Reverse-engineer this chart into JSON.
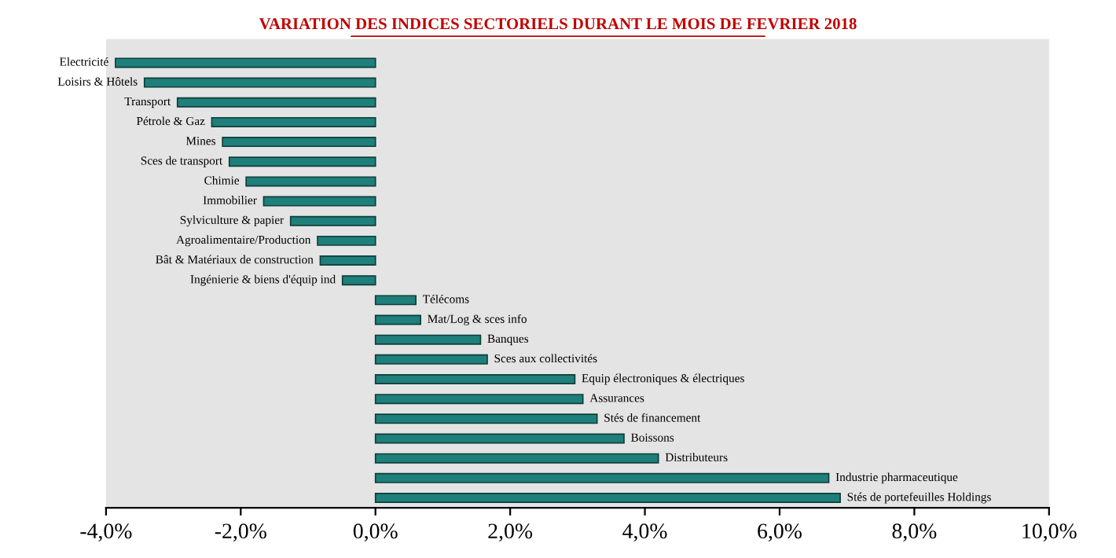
{
  "chart_data": {
    "type": "bar",
    "orientation": "horizontal",
    "title": "VARIATION DES INDICES SECTORIELS DURANT LE MOIS DE FEVRIER 2018",
    "categories": [
      "Electricité",
      "Loisirs & Hôtels",
      "Transport",
      "Pétrole & Gaz",
      "Mines",
      "Sces de transport",
      "Chimie",
      "Immobilier",
      "Sylviculture & papier",
      "Agroalimentaire/Production",
      "Bât & Matériaux de construction",
      "Ingénierie & biens d'équip ind",
      "Télécoms",
      "Mat/Log & sces info",
      "Banques",
      "Sces aux collectivités",
      "Equip électroniques & électriques",
      "Assurances",
      "Stés de financement",
      "Boissons",
      "Distributeurs",
      "Industrie pharmaceutique",
      "Stés de portefeuilles Holdings"
    ],
    "values": [
      -3.86,
      -3.43,
      -2.94,
      -2.43,
      -2.27,
      -2.17,
      -1.92,
      -1.66,
      -1.26,
      -0.86,
      -0.82,
      -0.49,
      0.6,
      0.67,
      1.56,
      1.66,
      2.96,
      3.08,
      3.29,
      3.69,
      4.2,
      6.73,
      6.9
    ],
    "color": "#1f7f7a",
    "xlim": [
      -4,
      10
    ],
    "xticks": [
      {
        "value": -4,
        "label": "-4,0%"
      },
      {
        "value": -2,
        "label": "-2,0%"
      },
      {
        "value": 0,
        "label": "0,0%"
      },
      {
        "value": 2,
        "label": "2,0%"
      },
      {
        "value": 4,
        "label": "4,0%"
      },
      {
        "value": 6,
        "label": "6,0%"
      },
      {
        "value": 8,
        "label": "8,0%"
      },
      {
        "value": 10,
        "label": "10,0%"
      }
    ],
    "tick_labels": "x",
    "grid": false,
    "legend": false
  }
}
